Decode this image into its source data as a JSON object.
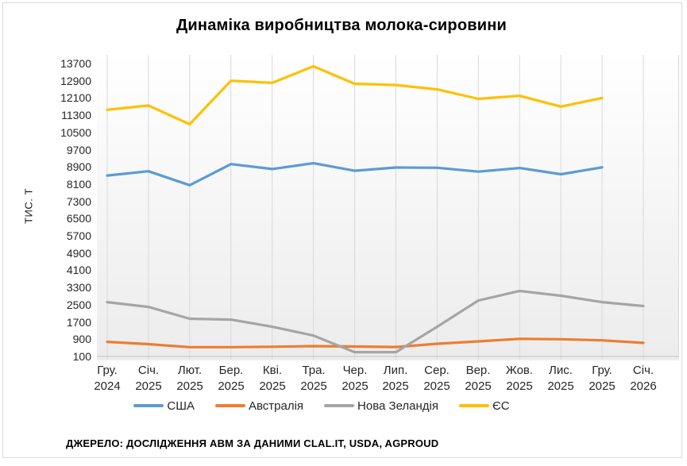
{
  "footer": "ДЖЕРЕЛО: ДОСЛІДЖЕННЯ ABM ЗА ДАНИМИ CLAL.IT, USDA, AGPROUD",
  "chart_data": {
    "type": "line",
    "title": "Динаміка виробництва молока-сировини",
    "ylabel": "ТИС. Т",
    "ylim": [
      100,
      13700
    ],
    "ytick_step": 800,
    "yticks": [
      100,
      900,
      1700,
      2500,
      3300,
      4100,
      4900,
      5700,
      6500,
      7300,
      8100,
      8900,
      9700,
      10500,
      11300,
      12100,
      12900,
      13700
    ],
    "grid": "vertical-only",
    "legend_position": "bottom",
    "plot_background": [
      "#ffffff",
      "#ececec"
    ],
    "categories": [
      [
        "Гру.",
        "2024"
      ],
      [
        "Січ.",
        "2025"
      ],
      [
        "Лют.",
        "2025"
      ],
      [
        "Бер.",
        "2025"
      ],
      [
        "Кві.",
        "2025"
      ],
      [
        "Тра.",
        "2025"
      ],
      [
        "Чер.",
        "2025"
      ],
      [
        "Лип.",
        "2025"
      ],
      [
        "Сер.",
        "2025"
      ],
      [
        "Вер.",
        "2025"
      ],
      [
        "Жов.",
        "2025"
      ],
      [
        "Лис.",
        "2025"
      ],
      [
        "Гру.",
        "2025"
      ],
      [
        "Січ.",
        "2026"
      ]
    ],
    "series": [
      {
        "name": "США",
        "color": "#5B9BD5",
        "values": [
          8500,
          8700,
          8050,
          9030,
          8800,
          9070,
          8720,
          8870,
          8860,
          8680,
          8850,
          8560,
          8880,
          null
        ]
      },
      {
        "name": "Австралія",
        "color": "#ED7D31",
        "values": [
          780,
          670,
          530,
          530,
          550,
          580,
          560,
          540,
          690,
          800,
          920,
          900,
          850,
          730
        ]
      },
      {
        "name": "Нова Зеландія",
        "color": "#A5A5A5",
        "values": [
          2620,
          2400,
          1850,
          1810,
          1480,
          1070,
          300,
          300,
          1480,
          2700,
          3140,
          2920,
          2620,
          2440
        ]
      },
      {
        "name": "ЄС",
        "color": "#FFC000",
        "values": [
          11550,
          11750,
          10880,
          12900,
          12800,
          13570,
          12760,
          12700,
          12500,
          12060,
          12200,
          11700,
          12100,
          null
        ]
      }
    ]
  }
}
